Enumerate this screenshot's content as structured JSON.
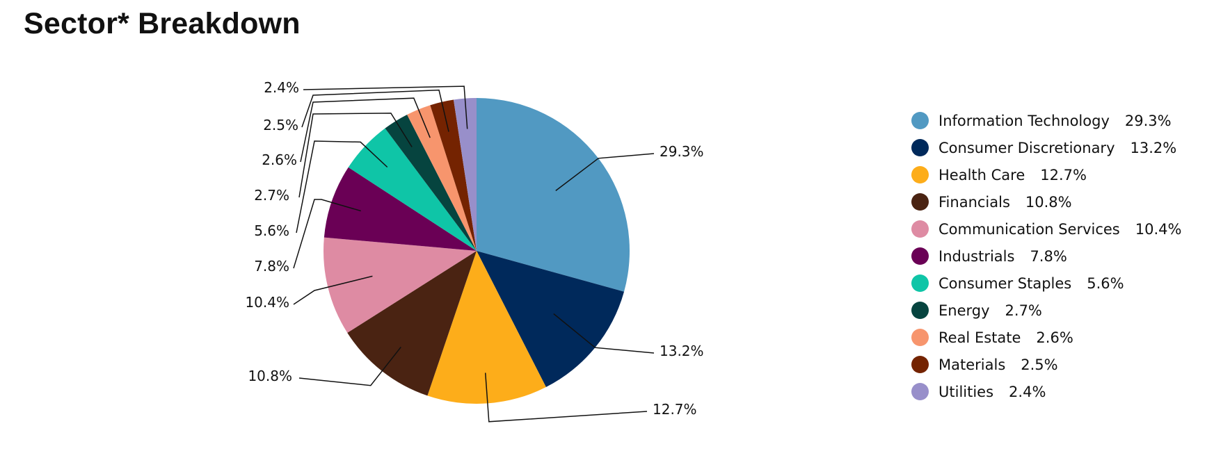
{
  "title": "Sector* Breakdown",
  "chart_data": {
    "type": "pie",
    "title": "Sector* Breakdown",
    "slices": [
      {
        "name": "Information Technology",
        "value": 29.3,
        "label": "29.3%",
        "color": "#5199c2"
      },
      {
        "name": "Consumer Discretionary",
        "value": 13.2,
        "label": "13.2%",
        "color": "#00295b"
      },
      {
        "name": "Health Care",
        "value": 12.7,
        "label": "12.7%",
        "color": "#fdad1a"
      },
      {
        "name": "Financials",
        "value": 10.8,
        "label": "10.8%",
        "color": "#4a2312"
      },
      {
        "name": "Communication Services",
        "value": 10.4,
        "label": "10.4%",
        "color": "#de8ba3"
      },
      {
        "name": "Industrials",
        "value": 7.8,
        "label": "7.8%",
        "color": "#6a0055"
      },
      {
        "name": "Consumer Staples",
        "value": 5.6,
        "label": "5.6%",
        "color": "#0fc5a7"
      },
      {
        "name": "Energy",
        "value": 2.7,
        "label": "2.7%",
        "color": "#06443f"
      },
      {
        "name": "Real Estate",
        "value": 2.6,
        "label": "2.6%",
        "color": "#f7956d"
      },
      {
        "name": "Materials",
        "value": 2.5,
        "label": "2.5%",
        "color": "#742301"
      },
      {
        "name": "Utilities",
        "value": 2.4,
        "label": "2.4%",
        "color": "#988fca"
      }
    ],
    "legend_position": "right"
  }
}
